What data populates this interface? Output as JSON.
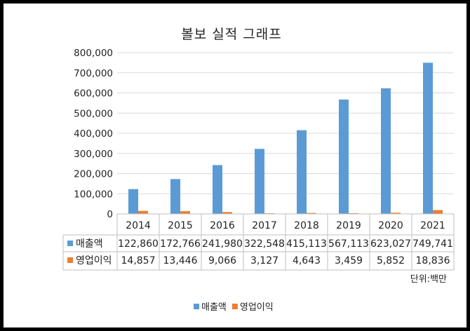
{
  "chart_data": {
    "type": "bar",
    "title": "볼보 실적 그래프",
    "categories": [
      "2014",
      "2015",
      "2016",
      "2017",
      "2018",
      "2019",
      "2020",
      "2021"
    ],
    "series": [
      {
        "name": "매출액",
        "color": "#5b9bd5",
        "values": [
          122860,
          172766,
          241980,
          322548,
          415113,
          567113,
          623027,
          749741
        ]
      },
      {
        "name": "영업이익",
        "color": "#ed7d31",
        "values": [
          14857,
          13446,
          9066,
          3127,
          4643,
          3459,
          5852,
          18836
        ]
      }
    ],
    "data_table": [
      {
        "name": "매출액",
        "cells": [
          "122,860",
          "172,766",
          "241,980",
          "322,548",
          "415,113",
          "567,113",
          "623,027",
          "749,741"
        ]
      },
      {
        "name": "영업이익",
        "cells": [
          "14,857",
          "13,446",
          "9,066",
          "3,127",
          "4,643",
          "3,459",
          "5,852",
          "18,836"
        ]
      }
    ],
    "yticks": [
      "0",
      "100,000",
      "200,000",
      "300,000",
      "400,000",
      "500,000",
      "600,000",
      "700,000",
      "800,000"
    ],
    "ylim": [
      0,
      800000
    ],
    "grid": true,
    "legend": "bottom-center",
    "unit_note": "단위:백만"
  }
}
